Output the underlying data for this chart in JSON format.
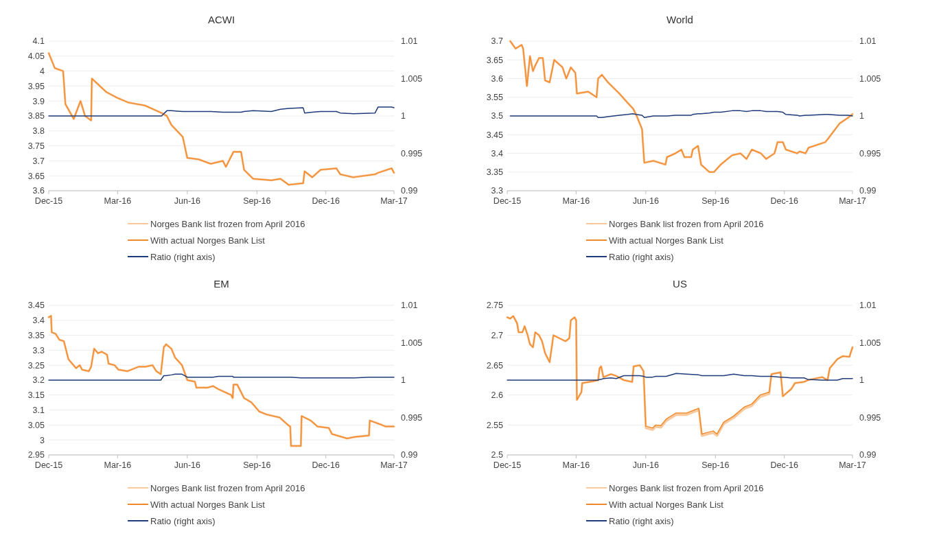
{
  "chart_data": [
    {
      "type": "line",
      "title": "ACWI",
      "x": [
        "2015-12-01",
        "2015-12-09",
        "2015-12-20",
        "2015-12-23",
        "2016-01-03",
        "2016-01-12",
        "2016-01-18",
        "2016-01-26",
        "2016-01-27",
        "2016-02-15",
        "2016-03-01",
        "2016-03-15",
        "2016-04-06",
        "2016-04-28",
        "2016-05-05",
        "2016-05-11",
        "2016-05-26",
        "2016-06-01",
        "2016-06-16",
        "2016-07-02",
        "2016-07-18",
        "2016-07-22",
        "2016-08-01",
        "2016-08-11",
        "2016-08-15",
        "2016-08-27",
        "2016-09-20",
        "2016-10-02",
        "2016-10-13",
        "2016-11-01",
        "2016-11-03",
        "2016-11-13",
        "2016-11-24",
        "2016-12-15",
        "2016-12-20",
        "2017-01-06",
        "2017-02-04",
        "2017-02-08",
        "2017-02-26",
        "2017-03-01"
      ],
      "series": [
        {
          "name": "Norges Bank list frozen from April 2016",
          "color": "#f9c89b",
          "values": [
            4.06,
            4.01,
            4.0,
            3.89,
            3.84,
            3.9,
            3.85,
            3.835,
            3.975,
            3.93,
            3.91,
            3.895,
            3.885,
            3.86,
            3.85,
            3.82,
            3.78,
            3.71,
            3.705,
            3.69,
            3.7,
            3.68,
            3.73,
            3.73,
            3.67,
            3.64,
            3.635,
            3.64,
            3.62,
            3.625,
            3.665,
            3.645,
            3.67,
            3.675,
            3.655,
            3.645,
            3.655,
            3.66,
            3.675,
            3.66
          ]
        },
        {
          "name": "With actual Norges Bank List",
          "color": "#f0892b",
          "values": [
            4.06,
            4.01,
            4.0,
            3.89,
            3.84,
            3.9,
            3.85,
            3.835,
            3.975,
            3.93,
            3.91,
            3.895,
            3.885,
            3.86,
            3.85,
            3.82,
            3.78,
            3.71,
            3.705,
            3.69,
            3.7,
            3.68,
            3.73,
            3.73,
            3.67,
            3.64,
            3.635,
            3.64,
            3.62,
            3.625,
            3.665,
            3.645,
            3.67,
            3.675,
            3.655,
            3.645,
            3.655,
            3.66,
            3.675,
            3.66
          ]
        },
        {
          "name": "Ratio (right axis)",
          "color": "#1f3a7a",
          "axis": "y2",
          "values": [
            1,
            1,
            1,
            1,
            1,
            1,
            1,
            1,
            1,
            1,
            1,
            1,
            1,
            1,
            1.0007,
            1.0007,
            1.0006,
            1.0006,
            1.0006,
            1.0006,
            1.0005,
            1.0005,
            1.0005,
            1.0005,
            1.0006,
            1.0007,
            1.0006,
            1.0009,
            1.001,
            1.0011,
            1.0004,
            1.0005,
            1.0006,
            1.0006,
            1.0004,
            1.0003,
            1.0004,
            1.0012,
            1.0012,
            1.0011
          ]
        }
      ],
      "xlim": [
        "2015-12-01",
        "2017-03-01"
      ],
      "xticks": [
        {
          "value": "2015-12-01",
          "label": "Dec-15"
        },
        {
          "value": "2016-03-01",
          "label": "Mar-16"
        },
        {
          "value": "2016-06-01",
          "label": "Jun-16"
        },
        {
          "value": "2016-09-01",
          "label": "Sep-16"
        },
        {
          "value": "2016-12-01",
          "label": "Dec-16"
        },
        {
          "value": "2017-03-01",
          "label": "Mar-17"
        }
      ],
      "ylim": [
        3.6,
        4.1
      ],
      "yticks": [
        3.6,
        3.65,
        3.7,
        3.75,
        3.8,
        3.85,
        3.9,
        3.95,
        4,
        4.05,
        4.1
      ],
      "y2lim": [
        0.99,
        1.01
      ],
      "y2ticks": [
        0.99,
        0.995,
        1,
        1.005,
        1.01
      ],
      "grid": "y",
      "legend": "bottom"
    },
    {
      "type": "line",
      "title": "World",
      "x": [
        "2015-12-05",
        "2015-12-12",
        "2015-12-20",
        "2015-12-22",
        "2015-12-27",
        "2015-12-31",
        "2016-01-04",
        "2016-01-07",
        "2016-01-12",
        "2016-01-17",
        "2016-01-20",
        "2016-01-26",
        "2016-02-01",
        "2016-02-12",
        "2016-02-17",
        "2016-02-23",
        "2016-02-29",
        "2016-03-02",
        "2016-03-17",
        "2016-03-28",
        "2016-03-30",
        "2016-04-04",
        "2016-04-12",
        "2016-04-27",
        "2016-05-08",
        "2016-05-15",
        "2016-05-19",
        "2016-05-27",
        "2016-05-30",
        "2016-06-11",
        "2016-06-27",
        "2016-06-29",
        "2016-07-10",
        "2016-07-18",
        "2016-07-22",
        "2016-07-31",
        "2016-08-02",
        "2016-08-09",
        "2016-08-13",
        "2016-08-24",
        "2016-08-30",
        "2016-09-08",
        "2016-09-23",
        "2016-10-04",
        "2016-10-12",
        "2016-10-19",
        "2016-10-31",
        "2016-11-07",
        "2016-11-18",
        "2016-11-22",
        "2016-11-29",
        "2016-12-03",
        "2016-12-18",
        "2016-12-21",
        "2016-12-29",
        "2017-01-02",
        "2017-01-24",
        "2017-01-28",
        "2017-02-12",
        "2017-02-23",
        "2017-03-01"
      ],
      "series": [
        {
          "name": "Norges Bank list frozen from April 2016",
          "color": "#f9c89b",
          "values": [
            3.7,
            3.68,
            3.69,
            3.68,
            3.58,
            3.66,
            3.62,
            3.635,
            3.655,
            3.655,
            3.595,
            3.59,
            3.65,
            3.63,
            3.6,
            3.63,
            3.615,
            3.56,
            3.565,
            3.55,
            3.6,
            3.61,
            3.59,
            3.56,
            3.535,
            3.52,
            3.505,
            3.465,
            3.375,
            3.38,
            3.37,
            3.39,
            3.4,
            3.41,
            3.39,
            3.39,
            3.41,
            3.42,
            3.37,
            3.35,
            3.35,
            3.37,
            3.395,
            3.4,
            3.385,
            3.41,
            3.4,
            3.385,
            3.4,
            3.43,
            3.43,
            3.41,
            3.4,
            3.405,
            3.4,
            3.415,
            3.43,
            3.44,
            3.48,
            3.495,
            3.505
          ]
        },
        {
          "name": "With actual Norges Bank List",
          "color": "#f0892b",
          "values": [
            3.7,
            3.68,
            3.69,
            3.68,
            3.58,
            3.66,
            3.62,
            3.635,
            3.655,
            3.655,
            3.595,
            3.59,
            3.65,
            3.63,
            3.6,
            3.63,
            3.615,
            3.56,
            3.565,
            3.55,
            3.6,
            3.61,
            3.59,
            3.56,
            3.535,
            3.52,
            3.505,
            3.465,
            3.375,
            3.38,
            3.37,
            3.39,
            3.4,
            3.41,
            3.39,
            3.39,
            3.41,
            3.42,
            3.37,
            3.35,
            3.35,
            3.37,
            3.395,
            3.4,
            3.385,
            3.41,
            3.4,
            3.385,
            3.4,
            3.43,
            3.43,
            3.41,
            3.4,
            3.405,
            3.4,
            3.415,
            3.43,
            3.44,
            3.48,
            3.495,
            3.505
          ]
        },
        {
          "name": "Ratio (right axis)",
          "color": "#1f3a7a",
          "axis": "y2",
          "values": [
            1,
            1,
            1,
            1,
            1,
            1,
            1,
            1,
            1,
            1,
            1,
            1,
            1,
            1,
            1,
            1,
            1,
            1,
            1,
            1,
            0.9998,
            0.9998,
            0.9999,
            1.0001,
            1.0002,
            1.0003,
            1.0002,
            1.0001,
            0.9998,
            1,
            1,
            1,
            1.0001,
            1.0001,
            1.0001,
            1.0001,
            1.0002,
            1.0003,
            1.0003,
            1.0004,
            1.0005,
            1.0005,
            1.0007,
            1.0007,
            1.0006,
            1.0007,
            1.0007,
            1.0006,
            1.0006,
            1.0006,
            1.0005,
            1.0002,
            1.0001,
            1,
            1.0001,
            1.0001,
            1.0002,
            1.0002,
            1.0001,
            1.0001,
            1
          ]
        }
      ],
      "xlim": [
        "2015-12-01",
        "2017-03-01"
      ],
      "xticks": [
        {
          "value": "2015-12-01",
          "label": "Dec-15"
        },
        {
          "value": "2016-03-01",
          "label": "Mar-16"
        },
        {
          "value": "2016-06-01",
          "label": "Jun-16"
        },
        {
          "value": "2016-09-01",
          "label": "Sep-16"
        },
        {
          "value": "2016-12-01",
          "label": "Dec-16"
        },
        {
          "value": "2017-03-01",
          "label": "Mar-17"
        }
      ],
      "ylim": [
        3.3,
        3.7
      ],
      "yticks": [
        3.3,
        3.35,
        3.4,
        3.45,
        3.5,
        3.55,
        3.6,
        3.65,
        3.7
      ],
      "y2lim": [
        0.99,
        1.01
      ],
      "y2ticks": [
        0.99,
        0.995,
        1,
        1.005,
        1.01
      ],
      "grid": "y",
      "legend": "bottom"
    },
    {
      "type": "line",
      "title": "EM",
      "x": [
        "2015-12-01",
        "2015-12-04",
        "2015-12-05",
        "2015-12-10",
        "2015-12-15",
        "2015-12-21",
        "2015-12-27",
        "2016-01-06",
        "2016-01-11",
        "2016-01-14",
        "2016-01-23",
        "2016-01-26",
        "2016-01-30",
        "2016-02-04",
        "2016-02-09",
        "2016-02-16",
        "2016-02-18",
        "2016-02-26",
        "2016-03-02",
        "2016-03-14",
        "2016-03-29",
        "2016-04-07",
        "2016-04-16",
        "2016-04-21",
        "2016-04-27",
        "2016-05-01",
        "2016-05-04",
        "2016-05-11",
        "2016-05-16",
        "2016-05-25",
        "2016-06-01",
        "2016-06-11",
        "2016-06-13",
        "2016-06-28",
        "2016-07-05",
        "2016-07-12",
        "2016-07-29",
        "2016-07-31",
        "2016-08-01",
        "2016-08-06",
        "2016-08-15",
        "2016-08-25",
        "2016-09-04",
        "2016-09-14",
        "2016-10-01",
        "2016-10-12",
        "2016-10-15",
        "2016-10-16",
        "2016-10-29",
        "2016-10-30",
        "2016-11-11",
        "2016-11-20",
        "2016-12-05",
        "2016-12-09",
        "2016-12-29",
        "2017-01-08",
        "2017-01-27",
        "2017-01-28",
        "2017-02-08",
        "2017-02-18",
        "2017-03-01"
      ],
      "series": [
        {
          "name": "Norges Bank list frozen from April 2016",
          "color": "#f9c89b",
          "values": [
            3.41,
            3.415,
            3.36,
            3.355,
            3.335,
            3.33,
            3.27,
            3.24,
            3.25,
            3.235,
            3.23,
            3.245,
            3.305,
            3.29,
            3.295,
            3.285,
            3.255,
            3.25,
            3.235,
            3.23,
            3.245,
            3.245,
            3.25,
            3.23,
            3.22,
            3.31,
            3.32,
            3.305,
            3.275,
            3.25,
            3.2,
            3.195,
            3.175,
            3.175,
            3.18,
            3.17,
            3.15,
            3.14,
            3.185,
            3.185,
            3.14,
            3.125,
            3.095,
            3.085,
            3.075,
            3.05,
            3.045,
            2.98,
            2.98,
            3.08,
            3.065,
            3.045,
            3.04,
            3.02,
            3.005,
            3.01,
            3.015,
            3.065,
            3.055,
            3.045,
            3.045
          ]
        },
        {
          "name": "With actual Norges Bank List",
          "color": "#f0892b",
          "values": [
            3.41,
            3.415,
            3.36,
            3.355,
            3.335,
            3.33,
            3.27,
            3.24,
            3.25,
            3.235,
            3.23,
            3.245,
            3.305,
            3.29,
            3.295,
            3.285,
            3.255,
            3.25,
            3.235,
            3.23,
            3.245,
            3.245,
            3.25,
            3.23,
            3.22,
            3.31,
            3.32,
            3.305,
            3.275,
            3.25,
            3.2,
            3.195,
            3.175,
            3.175,
            3.18,
            3.17,
            3.15,
            3.14,
            3.185,
            3.185,
            3.14,
            3.125,
            3.095,
            3.085,
            3.075,
            3.05,
            3.045,
            2.98,
            2.98,
            3.08,
            3.065,
            3.045,
            3.04,
            3.02,
            3.005,
            3.01,
            3.015,
            3.065,
            3.055,
            3.045,
            3.045
          ]
        },
        {
          "name": "Ratio (right axis)",
          "color": "#1f3a7a",
          "axis": "y2",
          "values": [
            1,
            1,
            1,
            1,
            1,
            1,
            1,
            1,
            1,
            1,
            1,
            1,
            1,
            1,
            1,
            1,
            1,
            1,
            1,
            1,
            1,
            1,
            1,
            1,
            1,
            1.0006,
            1.0006,
            1.0007,
            1.0008,
            1.0008,
            1.0004,
            1.0004,
            1.0004,
            1.0004,
            1.0004,
            1.0005,
            1.0005,
            1.0005,
            1.0004,
            1.0004,
            1.0004,
            1.0004,
            1.0004,
            1.0004,
            1.0004,
            1.0004,
            1.0004,
            1.0004,
            1.0003,
            1.0003,
            1.0003,
            1.0003,
            1.0003,
            1.0003,
            1.0003,
            1.0003,
            1.0004,
            1.0004,
            1.0004,
            1.0004,
            1.0004
          ]
        }
      ],
      "xlim": [
        "2015-12-01",
        "2017-03-01"
      ],
      "xticks": [
        {
          "value": "2015-12-01",
          "label": "Dec-15"
        },
        {
          "value": "2016-03-01",
          "label": "Mar-16"
        },
        {
          "value": "2016-06-01",
          "label": "Jun-16"
        },
        {
          "value": "2016-09-01",
          "label": "Sep-16"
        },
        {
          "value": "2016-12-01",
          "label": "Dec-16"
        },
        {
          "value": "2017-03-01",
          "label": "Mar-17"
        }
      ],
      "ylim": [
        2.95,
        3.45
      ],
      "yticks": [
        2.95,
        3,
        3.05,
        3.1,
        3.15,
        3.2,
        3.25,
        3.3,
        3.35,
        3.4,
        3.45
      ],
      "y2lim": [
        0.99,
        1.01
      ],
      "y2ticks": [
        0.99,
        0.995,
        1,
        1.005,
        1.01
      ],
      "grid": "y",
      "legend": "bottom"
    },
    {
      "type": "line",
      "title": "US",
      "x": [
        "2015-12-01",
        "2015-12-05",
        "2015-12-09",
        "2015-12-14",
        "2015-12-16",
        "2015-12-21",
        "2015-12-24",
        "2015-12-28",
        "2015-12-31",
        "2016-01-04",
        "2016-01-07",
        "2016-01-12",
        "2016-01-16",
        "2016-01-20",
        "2016-01-26",
        "2016-01-31",
        "2016-02-16",
        "2016-02-21",
        "2016-02-23",
        "2016-02-28",
        "2016-03-01",
        "2016-03-02",
        "2016-03-08",
        "2016-03-09",
        "2016-03-23",
        "2016-03-30",
        "2016-04-01",
        "2016-04-03",
        "2016-04-06",
        "2016-04-16",
        "2016-04-23",
        "2016-05-03",
        "2016-05-14",
        "2016-05-16",
        "2016-05-24",
        "2016-05-29",
        "2016-06-01",
        "2016-06-10",
        "2016-06-14",
        "2016-06-21",
        "2016-06-28",
        "2016-07-11",
        "2016-07-25",
        "2016-08-10",
        "2016-08-14",
        "2016-08-29",
        "2016-09-03",
        "2016-09-12",
        "2016-09-25",
        "2016-10-09",
        "2016-10-19",
        "2016-10-30",
        "2016-11-11",
        "2016-11-14",
        "2016-11-26",
        "2016-11-29",
        "2016-12-10",
        "2016-12-15",
        "2016-12-27",
        "2017-01-01",
        "2017-01-20",
        "2017-01-27",
        "2017-01-30",
        "2017-02-09",
        "2017-02-16",
        "2017-02-25",
        "2017-03-01"
      ],
      "series": [
        {
          "name": "Norges Bank list frozen from April 2016",
          "color": "#f9c89b",
          "values": [
            2.73,
            2.728,
            2.732,
            2.72,
            2.705,
            2.705,
            2.715,
            2.7,
            2.685,
            2.68,
            2.705,
            2.7,
            2.69,
            2.67,
            2.655,
            2.7,
            2.69,
            2.695,
            2.725,
            2.73,
            2.725,
            2.592,
            2.605,
            2.62,
            2.623,
            2.625,
            2.645,
            2.648,
            2.63,
            2.635,
            2.632,
            2.625,
            2.622,
            2.648,
            2.65,
            2.64,
            2.545,
            2.542,
            2.547,
            2.546,
            2.557,
            2.567,
            2.567,
            2.575,
            2.532,
            2.537,
            2.532,
            2.552,
            2.562,
            2.577,
            2.582,
            2.597,
            2.602,
            2.635,
            2.638,
            2.598,
            2.61,
            2.62,
            2.622,
            2.625,
            2.63,
            2.625,
            2.645,
            2.66,
            2.665,
            2.664,
            2.68
          ]
        },
        {
          "name": "With actual Norges Bank List",
          "color": "#f0892b",
          "values": [
            2.73,
            2.728,
            2.732,
            2.72,
            2.705,
            2.705,
            2.715,
            2.7,
            2.685,
            2.68,
            2.705,
            2.7,
            2.69,
            2.67,
            2.655,
            2.7,
            2.69,
            2.695,
            2.725,
            2.73,
            2.725,
            2.592,
            2.605,
            2.62,
            2.623,
            2.625,
            2.645,
            2.648,
            2.63,
            2.635,
            2.632,
            2.625,
            2.622,
            2.648,
            2.65,
            2.64,
            2.548,
            2.545,
            2.55,
            2.549,
            2.56,
            2.57,
            2.57,
            2.578,
            2.535,
            2.54,
            2.535,
            2.555,
            2.565,
            2.58,
            2.585,
            2.6,
            2.605,
            2.635,
            2.638,
            2.598,
            2.61,
            2.62,
            2.622,
            2.625,
            2.63,
            2.625,
            2.645,
            2.66,
            2.665,
            2.664,
            2.68
          ]
        },
        {
          "name": "Ratio (right axis)",
          "color": "#1f3a7a",
          "axis": "y2",
          "values": [
            1,
            1,
            1,
            1,
            1,
            1,
            1,
            1,
            1,
            1,
            1,
            1,
            1,
            1,
            1,
            1,
            1,
            1,
            1,
            1,
            1,
            1,
            1,
            1,
            1,
            1,
            1.0001,
            1.0001,
            1.0002,
            1.0003,
            1.0002,
            1.0006,
            1.0006,
            1.0006,
            1.0006,
            1.0005,
            1.0004,
            1.0004,
            1.0005,
            1.0005,
            1.0005,
            1.0009,
            1.0008,
            1.0007,
            1.0006,
            1.0006,
            1.0006,
            1.0006,
            1.0008,
            1.0006,
            1.0006,
            1.0005,
            1.0005,
            1.0005,
            1.0004,
            1.0004,
            1.0003,
            1.0003,
            1.0003,
            1.0001,
            1,
            1,
            1,
            1,
            1.0002,
            1.0002,
            1.0002
          ]
        }
      ],
      "xlim": [
        "2015-12-01",
        "2017-03-01"
      ],
      "xticks": [
        {
          "value": "2015-12-01",
          "label": "Dec-15"
        },
        {
          "value": "2016-03-01",
          "label": "Mar-16"
        },
        {
          "value": "2016-06-01",
          "label": "Jun-16"
        },
        {
          "value": "2016-09-01",
          "label": "Sep-16"
        },
        {
          "value": "2016-12-01",
          "label": "Dec-16"
        },
        {
          "value": "2017-03-01",
          "label": "Mar-17"
        }
      ],
      "ylim": [
        2.5,
        2.75
      ],
      "yticks": [
        2.5,
        2.55,
        2.6,
        2.65,
        2.7,
        2.75
      ],
      "y2lim": [
        0.99,
        1.01
      ],
      "y2ticks": [
        0.99,
        0.995,
        1,
        1.005,
        1.01
      ],
      "grid": "y",
      "legend": "bottom"
    }
  ]
}
